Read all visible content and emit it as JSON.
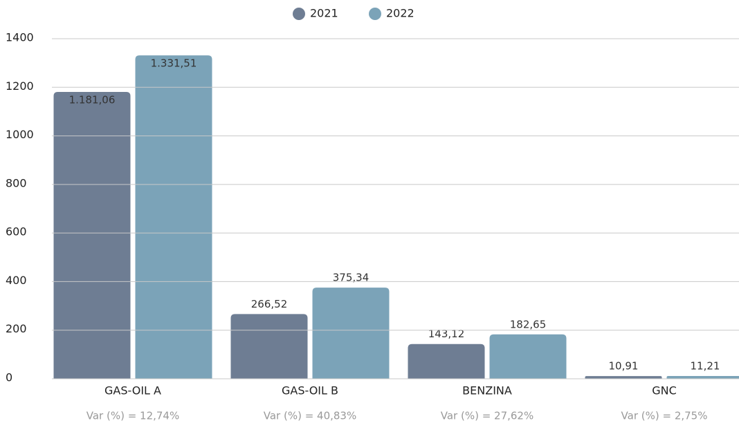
{
  "chart_data": {
    "type": "bar",
    "categories": [
      "GAS-OIL A",
      "GAS-OIL B",
      "BENZINA",
      "GNC"
    ],
    "annotations": [
      "Var (%) = 12,74%",
      "Var (%) = 40,83%",
      "Var (%) = 27,62%",
      "Var (%) = 2,75%"
    ],
    "series": [
      {
        "name": "2021",
        "color": "#6e7d93",
        "values": [
          1181.06,
          266.52,
          143.12,
          10.91
        ],
        "value_labels": [
          "1.181,06",
          "266,52",
          "143,12",
          "10,91"
        ]
      },
      {
        "name": "2022",
        "color": "#7ba3b8",
        "values": [
          1331.51,
          375.34,
          182.65,
          11.21
        ],
        "value_labels": [
          "1.331,51",
          "375,34",
          "182,65",
          "11,21"
        ]
      }
    ],
    "ylim": [
      0,
      1400
    ],
    "yticks": [
      0,
      200,
      400,
      600,
      800,
      1000,
      1200,
      1400
    ],
    "grid": true,
    "legend": "top"
  }
}
